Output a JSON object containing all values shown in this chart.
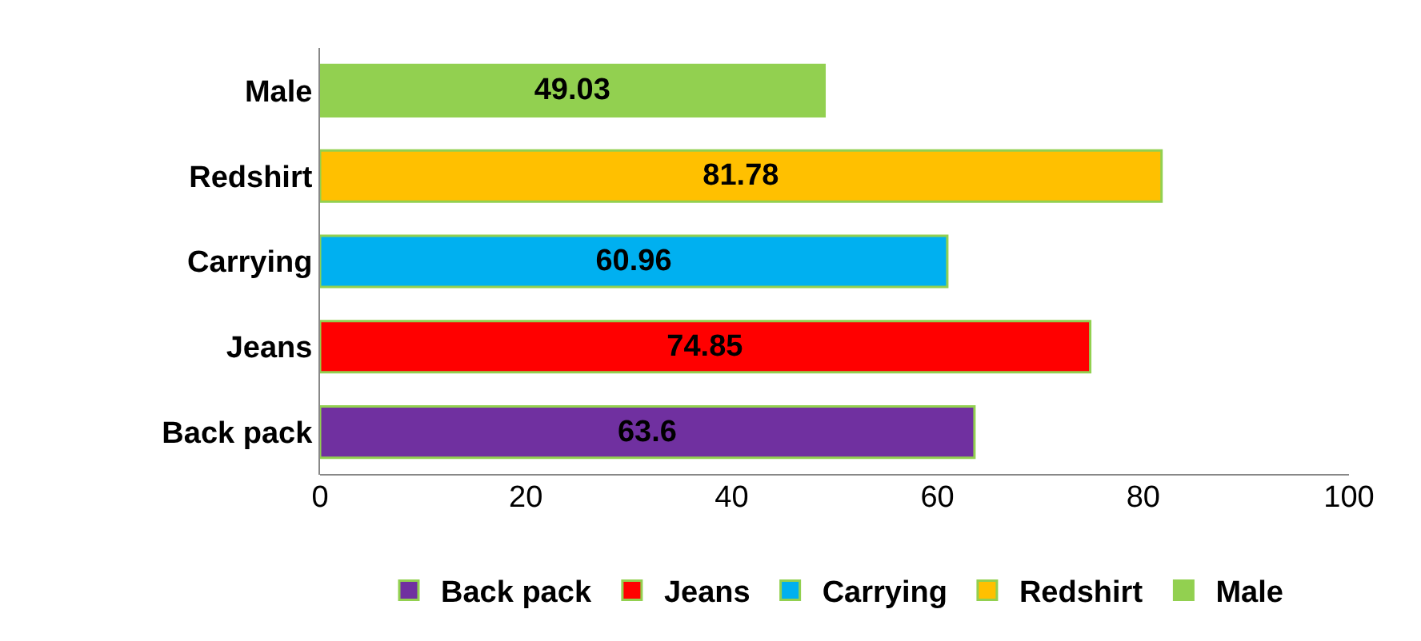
{
  "chart_data": {
    "type": "bar",
    "orientation": "horizontal",
    "categories": [
      "Male",
      "Redshirt",
      "Carrying",
      "Jeans",
      "Back pack"
    ],
    "series": [
      {
        "name": "Back pack",
        "color": "#7030a0",
        "values": [
          null,
          null,
          null,
          null,
          63.6
        ]
      },
      {
        "name": "Jeans",
        "color": "#ff0000",
        "values": [
          null,
          null,
          null,
          74.85,
          null
        ]
      },
      {
        "name": "Carrying",
        "color": "#00b0f0",
        "values": [
          null,
          null,
          60.96,
          null,
          null
        ]
      },
      {
        "name": "Redshirt",
        "color": "#ffc000",
        "values": [
          null,
          81.78,
          null,
          null,
          null
        ]
      },
      {
        "name": "Male",
        "color": "#92d050",
        "values": [
          49.03,
          null,
          null,
          null,
          null
        ]
      }
    ],
    "xlim": [
      0,
      100
    ],
    "xticks": [
      0,
      20,
      40,
      60,
      80,
      100
    ],
    "data_labels": true,
    "legend": "bottom"
  }
}
